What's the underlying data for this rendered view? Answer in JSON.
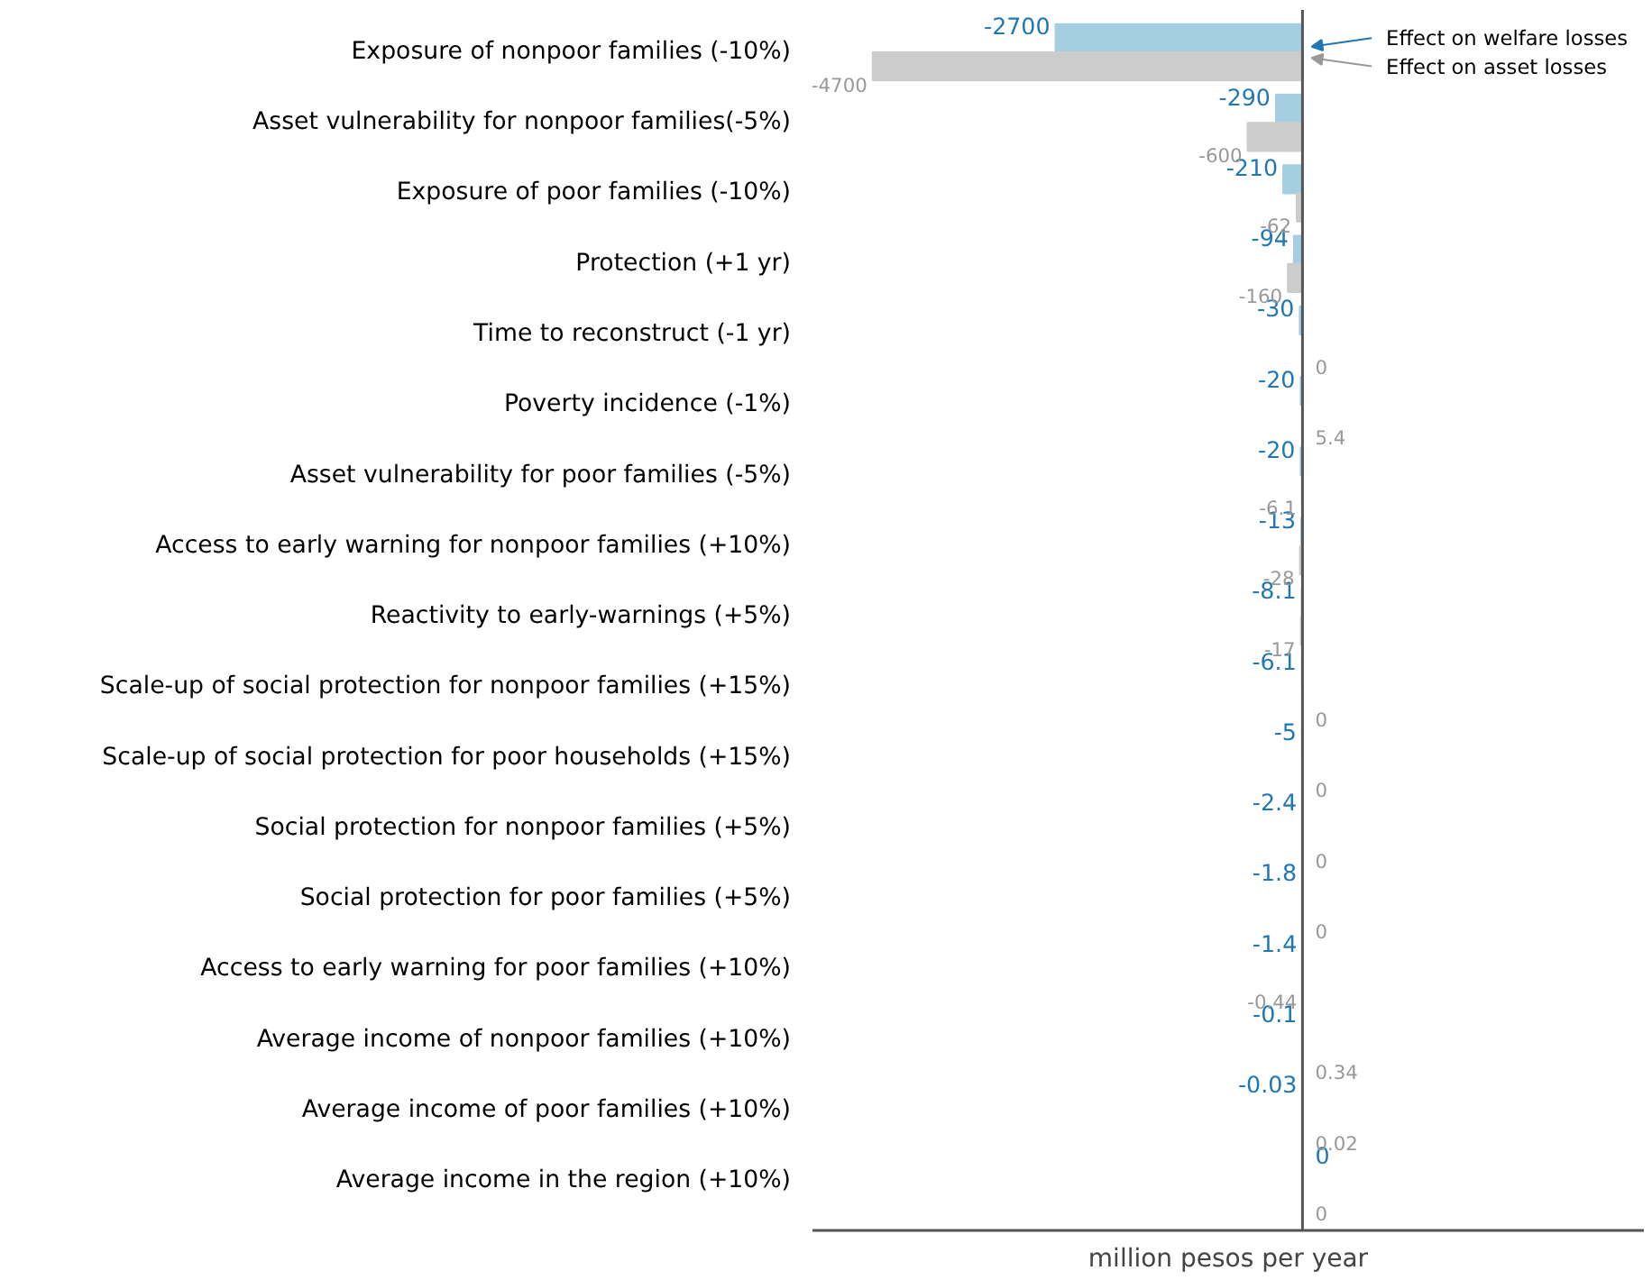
{
  "chart_data": {
    "type": "bar",
    "orientation": "horizontal",
    "xlabel": "million pesos per year",
    "tick_labels": "y",
    "data_labels": true,
    "grid": false,
    "categories": [
      "Exposure of nonpoor families (-10%)",
      "Asset vulnerability for nonpoor families(-5%)",
      "Exposure of poor families (-10%)",
      "Protection (+1 yr)",
      "Time to reconstruct (-1 yr)",
      "Poverty incidence (-1%)",
      "Asset vulnerability for poor families (-5%)",
      "Access to early warning for nonpoor families (+10%)",
      "Reactivity to early-warnings (+5%)",
      "Scale-up of social protection for nonpoor families (+15%)",
      "Scale-up of social protection for poor households (+15%)",
      "Social protection for nonpoor families (+5%)",
      "Social protection for poor families (+5%)",
      "Access to early warning for poor families (+10%)",
      "Average income of nonpoor families (+10%)",
      "Average income of poor families (+10%)",
      "Average income in the region (+10%)"
    ],
    "series": [
      {
        "name": "Effect on welfare losses",
        "color": "#a6cee3",
        "values": [
          -2700,
          -290,
          -210,
          -94,
          -30,
          -20,
          -20,
          -13,
          -8.1,
          -6.1,
          -5,
          -2.4,
          -1.8,
          -1.4,
          -0.1,
          -0.03,
          0
        ]
      },
      {
        "name": "Effect on asset losses",
        "color": "#cccccc",
        "values": [
          -4700,
          -600,
          -62,
          -160,
          0,
          5.4,
          -6.1,
          -28,
          -17,
          0,
          0,
          0,
          0,
          -0.44,
          0.34,
          0.02,
          0
        ]
      }
    ]
  }
}
